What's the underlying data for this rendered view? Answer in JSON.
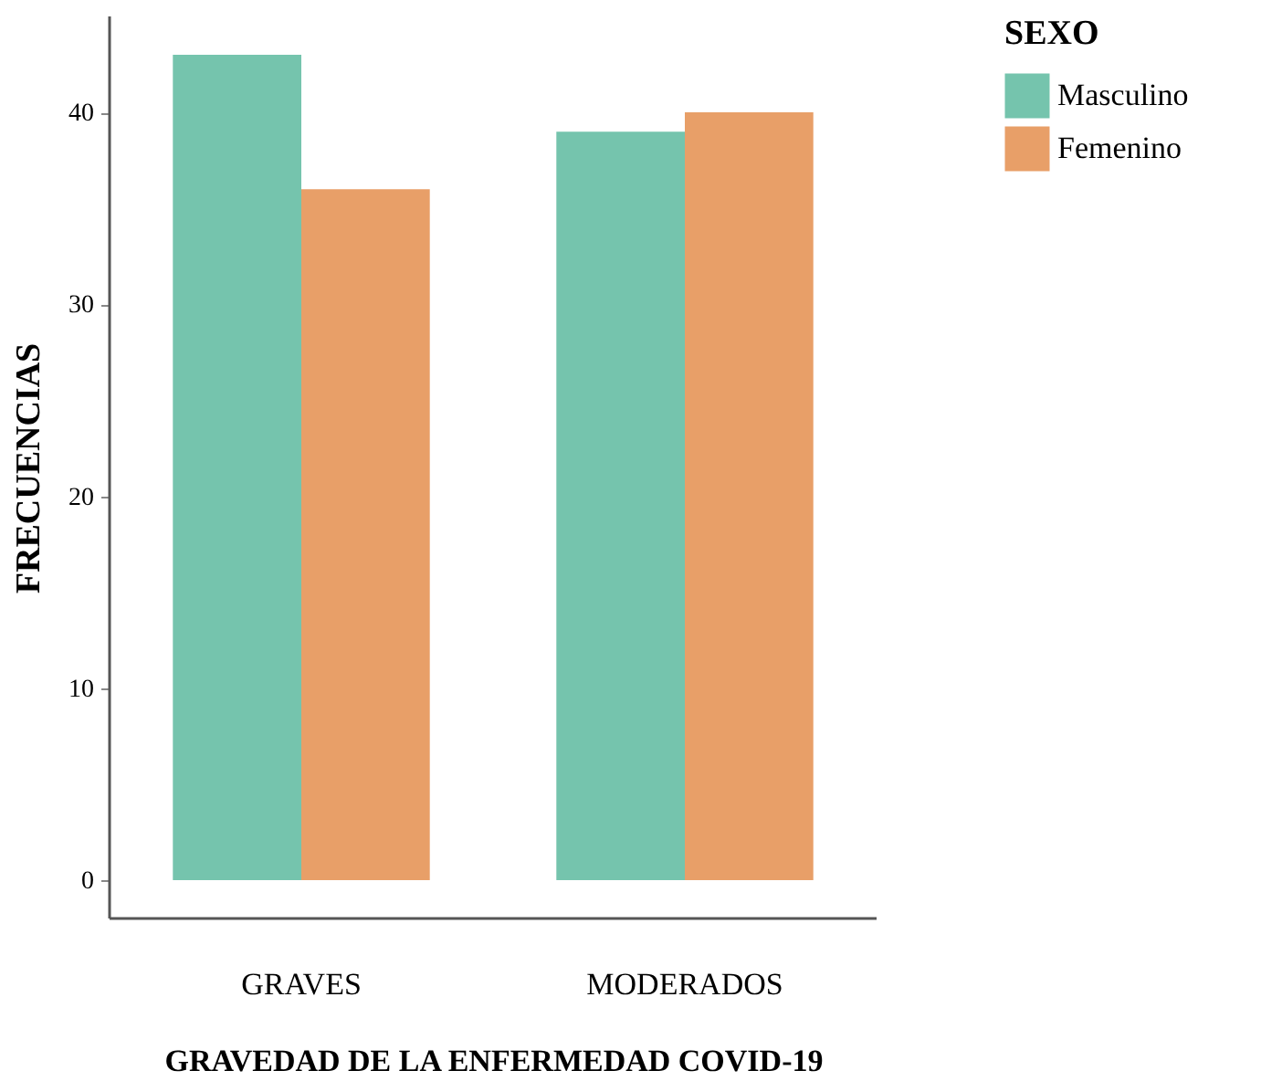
{
  "chart_data": {
    "type": "bar",
    "xlabel": "GRAVEDAD DE LA ENFERMEDAD  COVID-19",
    "ylabel": "FRECUENCIAS",
    "legend_title": "SEXO",
    "categories": [
      "GRAVES",
      "MODERADOS"
    ],
    "series": [
      {
        "name": "Masculino",
        "color": "#75c4ad",
        "values": [
          43,
          39
        ]
      },
      {
        "name": "Femenino",
        "color": "#e89f68",
        "values": [
          36,
          40
        ]
      }
    ],
    "ylim": [
      -2,
      45
    ],
    "yticks": [
      0,
      10,
      20,
      30,
      40
    ],
    "grid": false,
    "legend": "right"
  }
}
